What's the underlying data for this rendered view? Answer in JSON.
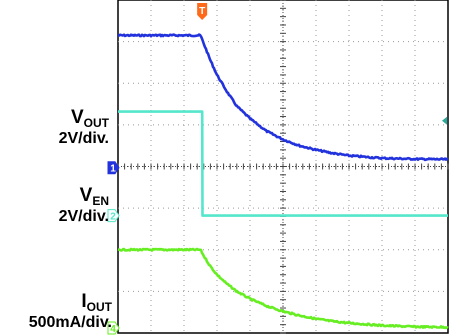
{
  "chart_data": {
    "type": "line",
    "title": "",
    "xlabel": "",
    "ylabel": "",
    "grid": true,
    "divisions": {
      "x": 10,
      "y": 8
    },
    "x_range_div": [
      0,
      10
    ],
    "y_range_div": [
      0,
      8
    ],
    "trigger_marker": "T",
    "series": [
      {
        "name": "VOUT",
        "label_main": "V",
        "label_sub": "OUT",
        "scale": "2V/div.",
        "channel": "1",
        "color": "#2233dd",
        "x": [
          0,
          2.5,
          2.6,
          2.8,
          3.0,
          3.3,
          3.6,
          4.0,
          4.5,
          5.0,
          5.5,
          6.0,
          6.5,
          7.0,
          8.0,
          9.0,
          10.0
        ],
        "y": [
          7.15,
          7.15,
          6.95,
          6.55,
          6.2,
          5.8,
          5.45,
          5.15,
          4.85,
          4.65,
          4.5,
          4.4,
          4.32,
          4.26,
          4.2,
          4.18,
          4.17
        ]
      },
      {
        "name": "VEN",
        "label_main": "V",
        "label_sub": "EN",
        "scale": "2V/div.",
        "channel": "2",
        "color": "#55e6cc",
        "x": [
          0,
          2.55,
          2.56,
          10.0
        ],
        "y": [
          5.32,
          5.32,
          2.82,
          2.82
        ]
      },
      {
        "name": "IOUT",
        "label_main": "I",
        "label_sub": "OUT",
        "scale": "500mA/div.",
        "channel": "4",
        "color": "#66ee22",
        "x": [
          0,
          2.5,
          2.6,
          2.8,
          3.0,
          3.3,
          3.6,
          4.0,
          4.5,
          5.0,
          5.5,
          6.0,
          6.5,
          7.0,
          8.0,
          9.0,
          10.0
        ],
        "y": [
          2.0,
          2.0,
          1.85,
          1.6,
          1.4,
          1.18,
          1.0,
          0.82,
          0.65,
          0.52,
          0.42,
          0.34,
          0.28,
          0.24,
          0.18,
          0.15,
          0.14
        ]
      }
    ],
    "offset_marker_color": "#2aa89a"
  }
}
